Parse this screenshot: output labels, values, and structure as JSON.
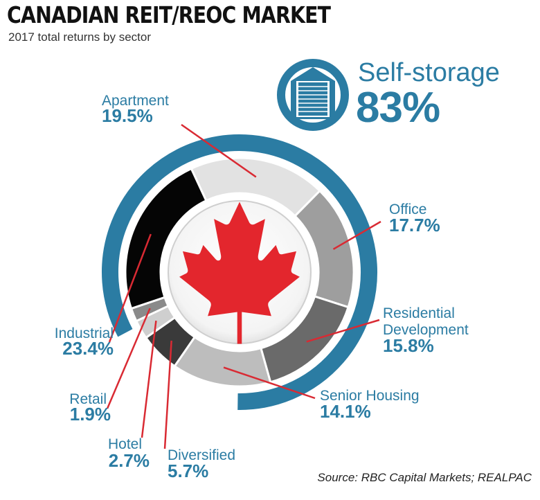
{
  "title": "CANADIAN REIT/REOC MARKET",
  "subtitle": "2017 total returns by sector",
  "source": "Source: RBC Capital Markets; REALPAC",
  "callout": {
    "label": "Self-storage",
    "value": "83%",
    "icon": "storage-garage-door-icon"
  },
  "colors": {
    "accent": "#2b7ca3",
    "leader": "#d92a33",
    "maple": "#e3262d"
  },
  "chart_data": {
    "type": "pie",
    "title": "CANADIAN REIT/REOC MARKET",
    "subtitle": "2017 total returns by sector",
    "highlight": {
      "category": "Self-storage",
      "value": 83,
      "label": "83%"
    },
    "slices": [
      {
        "category": "Apartment",
        "value": 19.5,
        "label": "19.5%",
        "color": "#e2e2e2"
      },
      {
        "category": "Office",
        "value": 17.7,
        "label": "17.7%",
        "color": "#9e9e9e"
      },
      {
        "category": "Residential Development",
        "value": 15.8,
        "label": "15.8%",
        "color": "#6a6a6a"
      },
      {
        "category": "Senior Housing",
        "value": 14.1,
        "label": "14.1%",
        "color": "#bdbdbd"
      },
      {
        "category": "Diversified",
        "value": 5.7,
        "label": "5.7%",
        "color": "#3a3a3a"
      },
      {
        "category": "Hotel",
        "value": 2.7,
        "label": "2.7%",
        "color": "#cfcfcf"
      },
      {
        "category": "Retail",
        "value": 1.9,
        "label": "1.9%",
        "color": "#8a8a8a"
      },
      {
        "category": "Industrial",
        "value": 23.4,
        "label": "23.4%",
        "color": "#050505"
      }
    ]
  }
}
